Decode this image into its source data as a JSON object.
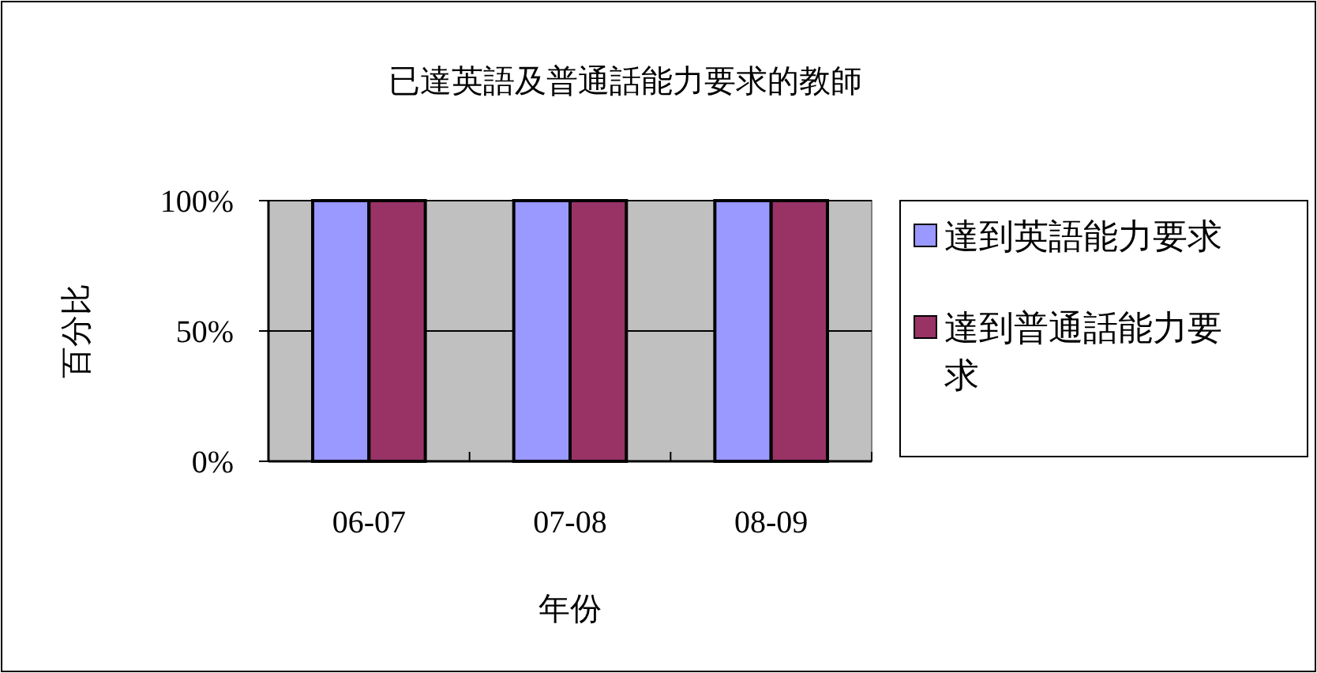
{
  "chart_data": {
    "type": "bar",
    "title": "已達英語及普通話能力要求的教師",
    "xlabel": "年份",
    "ylabel": "百分比",
    "categories": [
      "06-07",
      "07-08",
      "08-09"
    ],
    "series": [
      {
        "name": "達到英語能力要求",
        "color": "#9999ff",
        "values": [
          100,
          100,
          100
        ]
      },
      {
        "name": "達到普通話能力要求",
        "color": "#993366",
        "values": [
          100,
          100,
          100
        ]
      }
    ],
    "ylim": [
      0,
      100
    ],
    "yticks": [
      {
        "value": 0,
        "label": "0%"
      },
      {
        "value": 50,
        "label": "50%"
      },
      {
        "value": 100,
        "label": "100%"
      }
    ],
    "grid": "y",
    "legend": "right"
  }
}
